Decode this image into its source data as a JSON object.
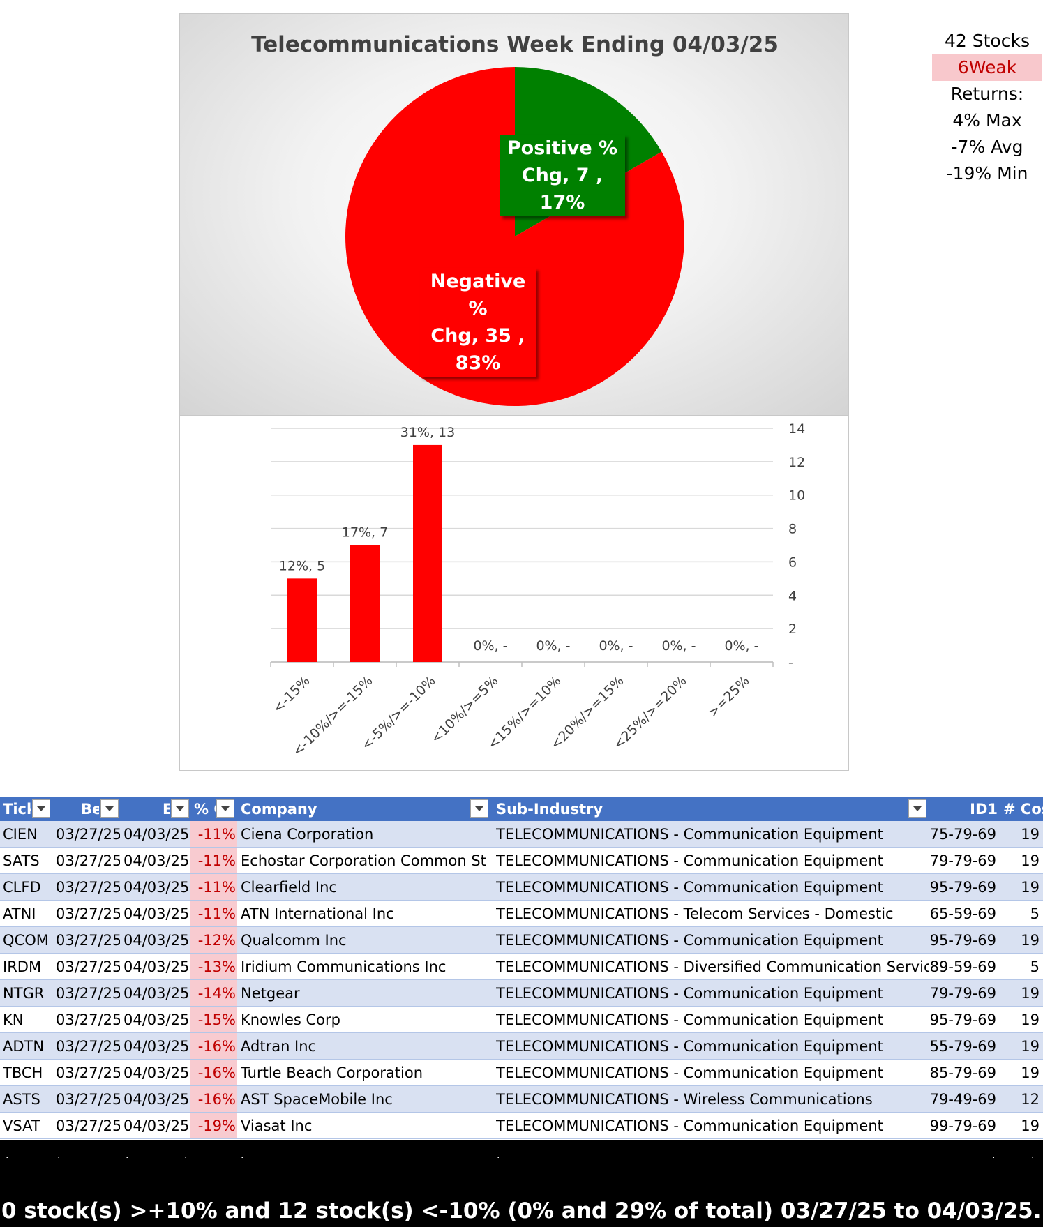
{
  "pie_chart": {
    "title": "Telecommunications  Week Ending 04/03/25",
    "colors": {
      "positive": "#008000",
      "negative": "#ff0000"
    },
    "labels": {
      "positive": [
        "Positive %",
        "Chg,  7 , 17%"
      ],
      "negative": [
        "Negative %",
        "Chg,  35 ,",
        "83%"
      ]
    }
  },
  "summary": {
    "stocks": "42 Stocks",
    "status": "6Weak",
    "returns_label": "Returns:",
    "max": "4% Max",
    "avg": "-7% Avg",
    "min": "-19% Min"
  },
  "chart_data": [
    {
      "type": "pie",
      "title": "Telecommunications  Week Ending 04/03/25",
      "slices": [
        {
          "name": "Positive % Chg",
          "count": 7,
          "percent": 17,
          "color": "#008000"
        },
        {
          "name": "Negative % Chg",
          "count": 35,
          "percent": 83,
          "color": "#ff0000"
        }
      ]
    },
    {
      "type": "bar",
      "categories": [
        "<-15%",
        "<-10%/>=-15%",
        "<-5%/>=-10%",
        "<10%/>=5%",
        "<15%/>=10%",
        "<20%/>=15%",
        "<25%/>=20%",
        ">=25%"
      ],
      "values": [
        5,
        7,
        13,
        0,
        0,
        0,
        0,
        0
      ],
      "data_labels": [
        "12%,  5",
        "17%,  7",
        "31%,  13",
        "0%,  -",
        "0%,  -",
        "0%,  -",
        "0%,  -",
        "0%,  -"
      ],
      "ylim": [
        0,
        14
      ],
      "yticks": [
        "-",
        "2",
        "4",
        "6",
        "8",
        "10",
        "12",
        "14"
      ],
      "y_axis_side": "right",
      "grid": true,
      "bar_color": "#ff0000"
    }
  ],
  "table": {
    "headers": [
      "Tick",
      "Be",
      "E",
      "% C",
      "Company",
      "Sub-Industry",
      "ID1",
      "# Cos"
    ],
    "rows": [
      [
        "CIEN",
        "03/27/25",
        "04/03/25",
        "-11%",
        "Ciena Corporation",
        "TELECOMMUNICATIONS - Communication Equipment",
        "75-79-69",
        "19"
      ],
      [
        "SATS",
        "03/27/25",
        "04/03/25",
        "-11%",
        "Echostar Corporation Common St",
        "TELECOMMUNICATIONS - Communication Equipment",
        "79-79-69",
        "19"
      ],
      [
        "CLFD",
        "03/27/25",
        "04/03/25",
        "-11%",
        "Clearfield Inc",
        "TELECOMMUNICATIONS - Communication Equipment",
        "95-79-69",
        "19"
      ],
      [
        "ATNI",
        "03/27/25",
        "04/03/25",
        "-11%",
        "ATN International Inc",
        "TELECOMMUNICATIONS - Telecom Services - Domestic",
        "65-59-69",
        "5"
      ],
      [
        "QCOM",
        "03/27/25",
        "04/03/25",
        "-12%",
        "Qualcomm Inc",
        "TELECOMMUNICATIONS - Communication Equipment",
        "95-79-69",
        "19"
      ],
      [
        "IRDM",
        "03/27/25",
        "04/03/25",
        "-13%",
        "Iridium Communications Inc",
        "TELECOMMUNICATIONS - Diversified Communication Services",
        "89-59-69",
        "5"
      ],
      [
        "NTGR",
        "03/27/25",
        "04/03/25",
        "-14%",
        "Netgear",
        "TELECOMMUNICATIONS - Communication Equipment",
        "79-79-69",
        "19"
      ],
      [
        "KN",
        "03/27/25",
        "04/03/25",
        "-15%",
        "Knowles Corp",
        "TELECOMMUNICATIONS - Communication Equipment",
        "95-79-69",
        "19"
      ],
      [
        "ADTN",
        "03/27/25",
        "04/03/25",
        "-16%",
        "Adtran Inc",
        "TELECOMMUNICATIONS - Communication Equipment",
        "55-79-69",
        "19"
      ],
      [
        "TBCH",
        "03/27/25",
        "04/03/25",
        "-16%",
        "Turtle Beach Corporation",
        "TELECOMMUNICATIONS - Communication Equipment",
        "85-79-69",
        "19"
      ],
      [
        "ASTS",
        "03/27/25",
        "04/03/25",
        "-16%",
        "AST SpaceMobile Inc",
        "TELECOMMUNICATIONS - Wireless Communications",
        "79-49-69",
        "12"
      ],
      [
        "VSAT",
        "03/27/25",
        "04/03/25",
        "-19%",
        "Viasat Inc",
        "TELECOMMUNICATIONS - Communication Equipment",
        "99-79-69",
        "19"
      ]
    ]
  },
  "footer": {
    "dots": [
      ".",
      ".",
      ".",
      ".",
      ".",
      ".",
      ".",
      "."
    ],
    "text": "0 stock(s) >+10% and 12 stock(s) <-10% (0% and 29% of total) 03/27/25 to 04/03/25."
  }
}
